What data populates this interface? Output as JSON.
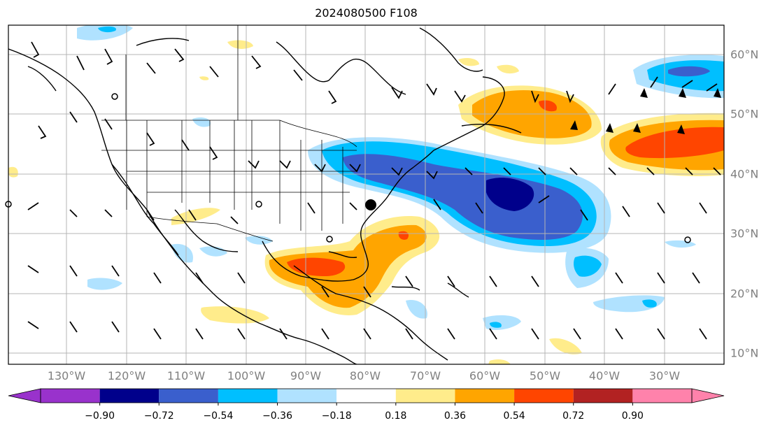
{
  "title": "2024080500 F108",
  "lon_labels": [
    "130°W",
    "120°W",
    "110°W",
    "100°W",
    "90°W",
    "80°W",
    "70°W",
    "60°W",
    "50°W",
    "40°W",
    "30°W"
  ],
  "lat_labels": [
    "60°N",
    "50°N",
    "40°N",
    "30°N",
    "20°N",
    "10°N"
  ],
  "colorbar": {
    "ticks": [
      "−0.90",
      "−0.72",
      "−0.54",
      "−0.36",
      "−0.18",
      "0.18",
      "0.36",
      "0.54",
      "0.72",
      "0.90"
    ],
    "colors": [
      "#9932cc",
      "#00008b",
      "#3a5fcd",
      "#00bfff",
      "#b0e2ff",
      "#ffffff",
      "#ffec8b",
      "#ffa500",
      "#ff4500",
      "#b22222",
      "#ff82ab"
    ]
  },
  "palette": {
    "strong_neg": "#00008b",
    "neg": "#3a5fcd",
    "mid_neg": "#00bfff",
    "weak_neg": "#b0e2ff",
    "weak_pos": "#ffec8b",
    "pos": "#ffa500",
    "strong_pos": "#ff4500"
  },
  "marker": {
    "label": "storm-center-marker"
  }
}
